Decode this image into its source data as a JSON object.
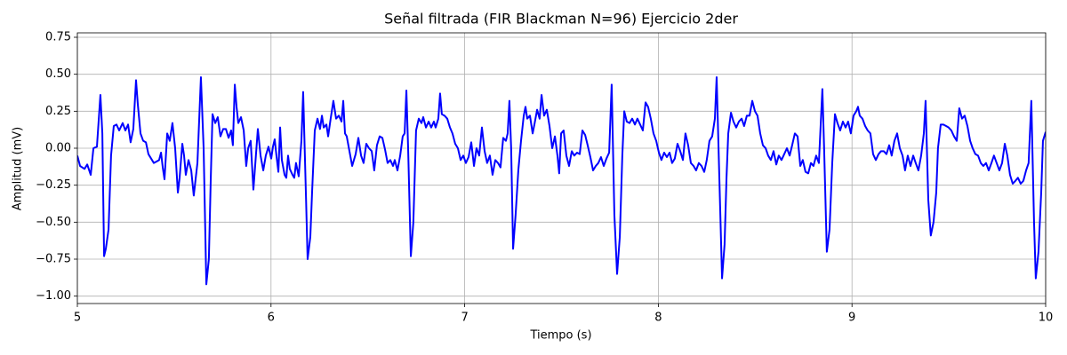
{
  "chart_data": {
    "type": "line",
    "title": "Señal filtrada (FIR Blackman N=96) Ejercicio 2der",
    "x_label": "Tiempo (s)",
    "y_label": "Amplitud (mV)",
    "xlim": [
      5,
      10
    ],
    "xticks": [
      5,
      6,
      7,
      8,
      9,
      10
    ],
    "ylim": [
      -1.05,
      0.78
    ],
    "yticks": [
      {
        "value": -1,
        "label": "−1.00"
      },
      {
        "value": -0.75,
        "label": "−0.75"
      },
      {
        "value": -0.5,
        "label": "−0.50"
      },
      {
        "value": -0.25,
        "label": "−0.25"
      },
      {
        "value": 0,
        "label": "0.00"
      },
      0.25,
      {
        "value": 0.5,
        "label": "0.50"
      },
      0.75
    ],
    "grid": true,
    "x": [
      5.0,
      5.014,
      5.037,
      5.051,
      5.069,
      5.083,
      5.101,
      5.119,
      5.129,
      5.138,
      5.147,
      5.161,
      5.174,
      5.188,
      5.202,
      5.216,
      5.234,
      5.248,
      5.262,
      5.275,
      5.289,
      5.303,
      5.312,
      5.326,
      5.34,
      5.354,
      5.367,
      5.381,
      5.395,
      5.409,
      5.422,
      5.432,
      5.441,
      5.45,
      5.464,
      5.477,
      5.491,
      5.505,
      5.519,
      5.528,
      5.542,
      5.551,
      5.56,
      5.574,
      5.588,
      5.601,
      5.62,
      5.638,
      5.652,
      5.666,
      5.679,
      5.689,
      5.698,
      5.712,
      5.725,
      5.739,
      5.753,
      5.767,
      5.781,
      5.794,
      5.803,
      5.813,
      5.822,
      5.831,
      5.845,
      5.859,
      5.872,
      5.882,
      5.895,
      5.909,
      5.918,
      5.932,
      5.946,
      5.96,
      5.973,
      5.987,
      6.001,
      6.01,
      6.019,
      6.028,
      6.038,
      6.047,
      6.056,
      6.07,
      6.079,
      6.088,
      6.097,
      6.111,
      6.12,
      6.129,
      6.143,
      6.157,
      6.166,
      6.18,
      6.189,
      6.203,
      6.212,
      6.226,
      6.24,
      6.253,
      6.263,
      6.272,
      6.286,
      6.295,
      6.308,
      6.322,
      6.336,
      6.35,
      6.364,
      6.373,
      6.382,
      6.391,
      6.405,
      6.419,
      6.437,
      6.451,
      6.465,
      6.478,
      6.492,
      6.506,
      6.52,
      6.533,
      6.547,
      6.561,
      6.575,
      6.589,
      6.602,
      6.616,
      6.63,
      6.639,
      6.653,
      6.667,
      6.68,
      6.69,
      6.699,
      6.708,
      6.722,
      6.735,
      6.749,
      6.763,
      6.777,
      6.786,
      6.8,
      6.814,
      6.827,
      6.841,
      6.85,
      6.864,
      6.873,
      6.882,
      6.896,
      6.91,
      6.924,
      6.937,
      6.951,
      6.965,
      6.979,
      6.993,
      7.006,
      7.02,
      7.034,
      7.048,
      7.061,
      7.075,
      7.089,
      7.103,
      7.116,
      7.13,
      7.144,
      7.158,
      7.172,
      7.185,
      7.199,
      7.213,
      7.222,
      7.231,
      7.24,
      7.25,
      7.263,
      7.277,
      7.291,
      7.305,
      7.314,
      7.323,
      7.337,
      7.351,
      7.36,
      7.374,
      7.387,
      7.397,
      7.41,
      7.424,
      7.438,
      7.452,
      7.466,
      7.479,
      7.488,
      7.498,
      7.511,
      7.525,
      7.539,
      7.553,
      7.566,
      7.58,
      7.594,
      7.608,
      7.622,
      7.635,
      7.649,
      7.663,
      7.677,
      7.69,
      7.704,
      7.718,
      7.732,
      7.746,
      7.759,
      7.773,
      7.787,
      7.801,
      7.814,
      7.824,
      7.837,
      7.851,
      7.865,
      7.879,
      7.892,
      7.906,
      7.92,
      7.934,
      7.947,
      7.961,
      7.975,
      7.989,
      8.003,
      8.016,
      8.03,
      8.044,
      8.058,
      8.071,
      8.085,
      8.099,
      8.113,
      8.127,
      8.14,
      8.154,
      8.168,
      8.182,
      8.195,
      8.209,
      8.223,
      8.237,
      8.25,
      8.264,
      8.278,
      8.292,
      8.301,
      8.315,
      8.329,
      8.342,
      8.352,
      8.361,
      8.375,
      8.388,
      8.402,
      8.416,
      8.43,
      8.443,
      8.457,
      8.471,
      8.485,
      8.499,
      8.512,
      8.526,
      8.54,
      8.554,
      8.567,
      8.581,
      8.595,
      8.609,
      8.622,
      8.636,
      8.65,
      8.664,
      8.678,
      8.691,
      8.705,
      8.719,
      8.733,
      8.746,
      8.76,
      8.774,
      8.788,
      8.801,
      8.815,
      8.829,
      8.847,
      8.856,
      8.87,
      8.884,
      8.898,
      8.912,
      8.925,
      8.939,
      8.953,
      8.967,
      8.98,
      8.994,
      9.008,
      9.022,
      9.031,
      9.04,
      9.054,
      9.068,
      9.081,
      9.095,
      9.109,
      9.123,
      9.137,
      9.15,
      9.164,
      9.178,
      9.192,
      9.205,
      9.219,
      9.233,
      9.247,
      9.261,
      9.274,
      9.288,
      9.302,
      9.316,
      9.329,
      9.343,
      9.357,
      9.371,
      9.38,
      9.394,
      9.407,
      9.421,
      9.435,
      9.444,
      9.458,
      9.472,
      9.486,
      9.499,
      9.513,
      9.527,
      9.541,
      9.554,
      9.568,
      9.582,
      9.596,
      9.61,
      9.623,
      9.637,
      9.651,
      9.665,
      9.678,
      9.692,
      9.706,
      9.72,
      9.733,
      9.747,
      9.761,
      9.775,
      9.789,
      9.802,
      9.816,
      9.83,
      9.844,
      9.857,
      9.871,
      9.885,
      9.899,
      9.912,
      9.926,
      9.94,
      9.949,
      9.963,
      9.977,
      9.986,
      10.0
    ],
    "series": [
      {
        "color": "#0000ff",
        "values": [
          -0.05,
          -0.12,
          -0.14,
          -0.11,
          -0.18,
          0.0,
          0.01,
          0.36,
          0.1,
          -0.73,
          -0.68,
          -0.55,
          -0.05,
          0.15,
          0.16,
          0.12,
          0.17,
          0.12,
          0.16,
          0.04,
          0.13,
          0.46,
          0.3,
          0.1,
          0.05,
          0.04,
          -0.04,
          -0.07,
          -0.1,
          -0.09,
          -0.08,
          -0.03,
          -0.13,
          -0.21,
          0.1,
          0.05,
          0.17,
          0.0,
          -0.3,
          -0.2,
          0.03,
          -0.05,
          -0.18,
          -0.08,
          -0.15,
          -0.32,
          -0.1,
          0.48,
          0.0,
          -0.92,
          -0.75,
          -0.2,
          0.23,
          0.17,
          0.21,
          0.08,
          0.13,
          0.13,
          0.07,
          0.12,
          0.02,
          0.43,
          0.28,
          0.17,
          0.21,
          0.12,
          -0.12,
          0.0,
          0.05,
          -0.28,
          -0.12,
          0.13,
          -0.05,
          -0.15,
          -0.05,
          0.01,
          -0.07,
          0.01,
          0.06,
          -0.05,
          -0.16,
          0.14,
          -0.08,
          -0.18,
          -0.2,
          -0.05,
          -0.14,
          -0.18,
          -0.2,
          -0.1,
          -0.19,
          0.05,
          0.38,
          -0.3,
          -0.75,
          -0.6,
          -0.3,
          0.12,
          0.2,
          0.13,
          0.22,
          0.14,
          0.16,
          0.08,
          0.2,
          0.32,
          0.2,
          0.22,
          0.18,
          0.32,
          0.1,
          0.08,
          -0.02,
          -0.12,
          -0.04,
          0.07,
          -0.05,
          -0.1,
          0.03,
          0.0,
          -0.02,
          -0.15,
          0.02,
          0.08,
          0.07,
          -0.01,
          -0.1,
          -0.08,
          -0.12,
          -0.08,
          -0.15,
          -0.05,
          0.08,
          0.1,
          0.39,
          0.0,
          -0.73,
          -0.5,
          0.12,
          0.2,
          0.17,
          0.21,
          0.14,
          0.18,
          0.14,
          0.18,
          0.14,
          0.2,
          0.37,
          0.23,
          0.22,
          0.2,
          0.14,
          0.1,
          0.03,
          0.0,
          -0.08,
          -0.05,
          -0.1,
          -0.06,
          0.04,
          -0.12,
          0.0,
          -0.05,
          0.14,
          -0.02,
          -0.1,
          -0.05,
          -0.18,
          -0.08,
          -0.1,
          -0.13,
          0.07,
          0.05,
          0.1,
          0.32,
          0.0,
          -0.68,
          -0.45,
          -0.15,
          0.05,
          0.22,
          0.28,
          0.2,
          0.22,
          0.1,
          0.16,
          0.26,
          0.2,
          0.36,
          0.22,
          0.26,
          0.15,
          0.0,
          0.08,
          -0.05,
          -0.17,
          0.1,
          0.12,
          -0.05,
          -0.12,
          -0.02,
          -0.05,
          -0.03,
          -0.04,
          0.12,
          0.09,
          0.02,
          -0.06,
          -0.15,
          -0.12,
          -0.1,
          -0.06,
          -0.12,
          -0.07,
          -0.03,
          0.43,
          -0.45,
          -0.85,
          -0.6,
          -0.05,
          0.25,
          0.18,
          0.17,
          0.2,
          0.16,
          0.2,
          0.16,
          0.12,
          0.31,
          0.28,
          0.2,
          0.1,
          0.05,
          -0.03,
          -0.08,
          -0.03,
          -0.06,
          -0.03,
          -0.1,
          -0.07,
          0.03,
          -0.02,
          -0.08,
          0.1,
          0.02,
          -0.1,
          -0.12,
          -0.15,
          -0.1,
          -0.12,
          -0.16,
          -0.08,
          0.05,
          0.08,
          0.2,
          0.48,
          -0.2,
          -0.88,
          -0.65,
          -0.2,
          0.1,
          0.24,
          0.18,
          0.14,
          0.18,
          0.2,
          0.15,
          0.22,
          0.22,
          0.32,
          0.25,
          0.22,
          0.1,
          0.02,
          0.0,
          -0.05,
          -0.08,
          -0.02,
          -0.11,
          -0.05,
          -0.08,
          -0.04,
          0.0,
          -0.05,
          0.02,
          0.1,
          0.08,
          -0.12,
          -0.08,
          -0.16,
          -0.17,
          -0.1,
          -0.12,
          -0.05,
          -0.1,
          0.4,
          0.0,
          -0.7,
          -0.55,
          -0.1,
          0.23,
          0.17,
          0.12,
          0.18,
          0.14,
          0.18,
          0.1,
          0.22,
          0.25,
          0.28,
          0.22,
          0.2,
          0.15,
          0.12,
          0.1,
          -0.04,
          -0.08,
          -0.04,
          -0.02,
          -0.02,
          -0.04,
          0.02,
          -0.05,
          0.05,
          0.1,
          0.0,
          -0.05,
          -0.15,
          -0.05,
          -0.12,
          -0.05,
          -0.1,
          -0.15,
          -0.05,
          0.1,
          0.32,
          -0.35,
          -0.59,
          -0.5,
          -0.3,
          0.0,
          0.16,
          0.16,
          0.15,
          0.14,
          0.12,
          0.08,
          0.05,
          0.27,
          0.2,
          0.22,
          0.15,
          0.05,
          0.0,
          -0.04,
          -0.05,
          -0.1,
          -0.12,
          -0.1,
          -0.15,
          -0.1,
          -0.05,
          -0.1,
          -0.15,
          -0.1,
          0.03,
          -0.05,
          -0.18,
          -0.24,
          -0.22,
          -0.2,
          -0.24,
          -0.22,
          -0.15,
          -0.1,
          0.32,
          -0.5,
          -0.88,
          -0.7,
          -0.3,
          0.05,
          0.11
        ]
      }
    ]
  }
}
